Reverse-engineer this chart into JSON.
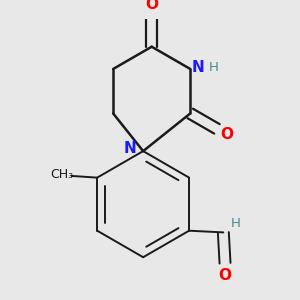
{
  "bg_color": "#e8e8e8",
  "bond_color": "#1a1a1a",
  "bond_width": 1.8,
  "atom_colors": {
    "N": "#1a1aff",
    "O": "#ff0000",
    "C": "#1a1a1a",
    "H": "#4a8a8a"
  },
  "font_size_atom": 11,
  "font_size_h": 9.5
}
